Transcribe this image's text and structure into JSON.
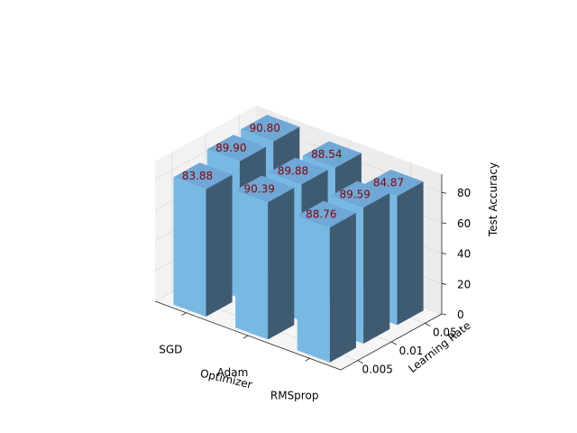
{
  "chart_data": {
    "type": "bar3d",
    "xlabel": "Optimizer",
    "ylabel": "Learning Rate",
    "zlabel": "Test Accuracy",
    "x_categories": [
      "SGD",
      "Adam",
      "RMSprop"
    ],
    "y_categories": [
      "0.005",
      "0.01",
      "0.05"
    ],
    "z_ticks": [
      "0",
      "20",
      "40",
      "60",
      "80"
    ],
    "zlim": [
      0,
      92
    ],
    "bars": [
      {
        "optimizer": "SGD",
        "learning_rate": "0.005",
        "value": 83.88,
        "label": "83.88"
      },
      {
        "optimizer": "SGD",
        "learning_rate": "0.01",
        "value": 89.9,
        "label": "89.90"
      },
      {
        "optimizer": "SGD",
        "learning_rate": "0.05",
        "value": 90.8,
        "label": "90.80"
      },
      {
        "optimizer": "Adam",
        "learning_rate": "0.005",
        "value": 90.39,
        "label": "90.39"
      },
      {
        "optimizer": "Adam",
        "learning_rate": "0.01",
        "value": 89.88,
        "label": "89.88"
      },
      {
        "optimizer": "Adam",
        "learning_rate": "0.05",
        "value": 88.54,
        "label": "88.54"
      },
      {
        "optimizer": "RMSprop",
        "learning_rate": "0.005",
        "value": 88.76,
        "label": "88.76"
      },
      {
        "optimizer": "RMSprop",
        "learning_rate": "0.01",
        "value": 89.59,
        "label": "89.59"
      },
      {
        "optimizer": "RMSprop",
        "learning_rate": "0.05",
        "value": 84.87,
        "label": "84.87"
      }
    ],
    "colors": {
      "bar_top": "#6fa8d6",
      "bar_front": "#78b9e3",
      "bar_side": "#3f5b72",
      "label": "#8b0000",
      "pane": "#f2f2f2",
      "grid": "#dcdcdc"
    }
  }
}
